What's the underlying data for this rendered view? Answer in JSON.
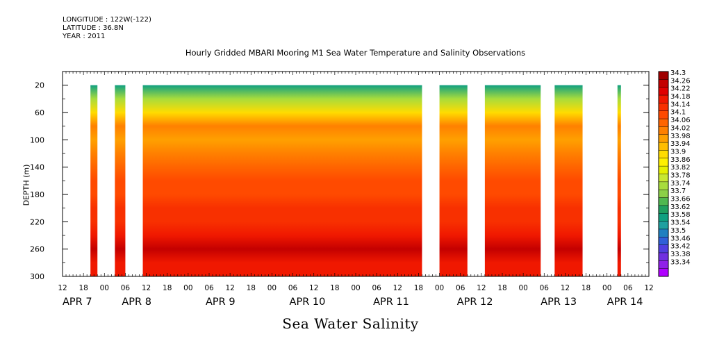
{
  "header": {
    "longitude": "LONGITUDE : 122W(-122)",
    "latitude": "LATITUDE : 36.8N",
    "year": "YEAR : 2011"
  },
  "chart_data": {
    "type": "heatmap",
    "title": "Hourly Gridded MBARI Mooring M1 Sea Water Temperature and Salinity Observations",
    "xlabel": "",
    "ylabel": "DEPTH (m)",
    "bottom_title": "Sea Water Salinity",
    "x_range_hours": [
      0,
      168
    ],
    "x_tick_labels": [
      "12",
      "18",
      "00",
      "06",
      "12",
      "18",
      "00",
      "06",
      "12",
      "18",
      "00",
      "06",
      "12",
      "18",
      "00",
      "06",
      "12",
      "18",
      "00",
      "06",
      "12",
      "18",
      "00",
      "06",
      "12",
      "18",
      "00",
      "06",
      "12"
    ],
    "x_date_labels": [
      "APR  7",
      "APR  8",
      "APR  9",
      "APR 10",
      "APR 11",
      "APR 12",
      "APR 13",
      "APR 14"
    ],
    "x_date_label_hours": [
      0,
      17,
      41,
      65,
      89,
      113,
      137,
      156
    ],
    "y_range": [
      300,
      0
    ],
    "y_ticks": [
      20,
      60,
      100,
      140,
      180,
      220,
      260,
      300
    ],
    "depth_profile": [
      {
        "depth": 20,
        "salinity": 33.6
      },
      {
        "depth": 40,
        "salinity": 33.76
      },
      {
        "depth": 60,
        "salinity": 33.9
      },
      {
        "depth": 80,
        "salinity": 34.02
      },
      {
        "depth": 100,
        "salinity": 33.98
      },
      {
        "depth": 120,
        "salinity": 34.02
      },
      {
        "depth": 140,
        "salinity": 34.06
      },
      {
        "depth": 160,
        "salinity": 34.1
      },
      {
        "depth": 180,
        "salinity": 34.1
      },
      {
        "depth": 200,
        "salinity": 34.14
      },
      {
        "depth": 220,
        "salinity": 34.16
      },
      {
        "depth": 240,
        "salinity": 34.2
      },
      {
        "depth": 260,
        "salinity": 34.26
      },
      {
        "depth": 280,
        "salinity": 34.2
      },
      {
        "depth": 300,
        "salinity": 34.18
      }
    ],
    "data_segments_hours": [
      [
        8,
        10
      ],
      [
        15,
        18
      ],
      [
        23,
        103
      ],
      [
        108,
        116
      ],
      [
        121,
        137
      ],
      [
        141,
        149
      ],
      [
        159,
        160
      ]
    ],
    "colorbar": {
      "levels": [
        34.3,
        34.26,
        34.22,
        34.18,
        34.14,
        34.1,
        34.06,
        34.02,
        33.98,
        33.94,
        33.9,
        33.86,
        33.82,
        33.78,
        33.74,
        33.7,
        33.66,
        33.62,
        33.58,
        33.54,
        33.5,
        33.46,
        33.42,
        33.38,
        33.34
      ],
      "colors": [
        "#a00000",
        "#c40000",
        "#e00000",
        "#f01800",
        "#f83000",
        "#ff4a00",
        "#ff6400",
        "#ff8000",
        "#ffa000",
        "#ffbe00",
        "#ffdc00",
        "#fff000",
        "#e6f000",
        "#c8e832",
        "#a8dc3c",
        "#8cd048",
        "#50b850",
        "#20a060",
        "#10a080",
        "#20a0a0",
        "#2080c0",
        "#3060d8",
        "#5040e0",
        "#7030e0",
        "#9020e8",
        "#b000ff"
      ]
    }
  }
}
